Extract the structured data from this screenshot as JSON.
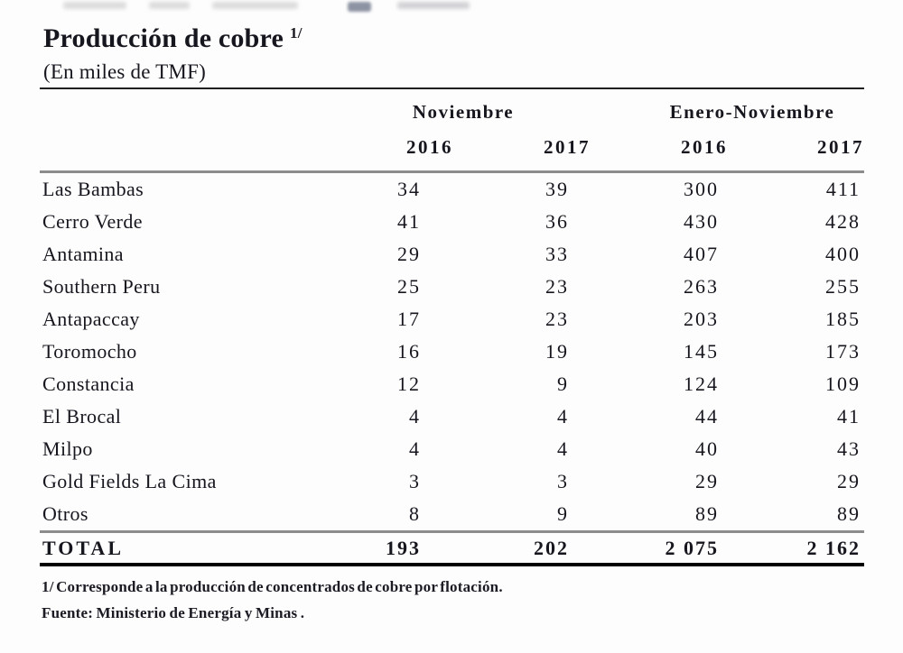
{
  "table": {
    "title": "Producción de cobre",
    "title_superscript": "1/",
    "subtitle": "(En miles de TMF)",
    "col_groups": [
      {
        "label": "Noviembre"
      },
      {
        "label": "Enero-Noviembre"
      }
    ],
    "year_headers": [
      "2016",
      "2017",
      "2016",
      "2017"
    ],
    "rows": [
      {
        "name": "Las Bambas",
        "values": [
          "34",
          "39",
          "300",
          "411"
        ]
      },
      {
        "name": "Cerro Verde",
        "values": [
          "41",
          "36",
          "430",
          "428"
        ]
      },
      {
        "name": "Antamina",
        "values": [
          "29",
          "33",
          "407",
          "400"
        ]
      },
      {
        "name": "Southern Peru",
        "values": [
          "25",
          "23",
          "263",
          "255"
        ]
      },
      {
        "name": "Antapaccay",
        "values": [
          "17",
          "23",
          "203",
          "185"
        ]
      },
      {
        "name": "Toromocho",
        "values": [
          "16",
          "19",
          "145",
          "173"
        ]
      },
      {
        "name": "Constancia",
        "values": [
          "12",
          "9",
          "124",
          "109"
        ]
      },
      {
        "name": "El Brocal",
        "values": [
          "4",
          "4",
          "44",
          "41"
        ]
      },
      {
        "name": "Milpo",
        "values": [
          "4",
          "4",
          "40",
          "43"
        ]
      },
      {
        "name": "Gold Fields La Cima",
        "values": [
          "3",
          "3",
          "29",
          "29"
        ]
      },
      {
        "name": "Otros",
        "values": [
          "8",
          "9",
          "89",
          "89"
        ]
      }
    ],
    "total_row": {
      "name": "TOTAL",
      "values": [
        "193",
        "202",
        "2 075",
        "2 162"
      ]
    },
    "footnote": "1/ Corresponde a la producción de concentrados de cobre por flotación.",
    "source": "Fuente: Ministerio de Energía y Minas ."
  },
  "colors": {
    "text": "#16161e",
    "rule_dark": "#1f1f1f",
    "rule_gray": "#8c8c8c",
    "rule_bottom": "#000000",
    "background": "#fdfdfd"
  },
  "chart_data": {
    "type": "table",
    "title": "Producción de cobre 1/",
    "subtitle": "(En miles de TMF)",
    "column_groups": [
      "Noviembre",
      "Enero-Noviembre"
    ],
    "columns": [
      "Noviembre 2016",
      "Noviembre 2017",
      "Enero-Noviembre 2016",
      "Enero-Noviembre 2017"
    ],
    "categories": [
      "Las Bambas",
      "Cerro Verde",
      "Antamina",
      "Southern Peru",
      "Antapaccay",
      "Toromocho",
      "Constancia",
      "El Brocal",
      "Milpo",
      "Gold Fields La Cima",
      "Otros"
    ],
    "values": [
      [
        34,
        39,
        300,
        411
      ],
      [
        41,
        36,
        430,
        428
      ],
      [
        29,
        33,
        407,
        400
      ],
      [
        25,
        23,
        263,
        255
      ],
      [
        17,
        23,
        203,
        185
      ],
      [
        16,
        19,
        145,
        173
      ],
      [
        12,
        9,
        124,
        109
      ],
      [
        4,
        4,
        44,
        41
      ],
      [
        4,
        4,
        40,
        43
      ],
      [
        3,
        3,
        29,
        29
      ],
      [
        8,
        9,
        89,
        89
      ]
    ],
    "total": [
      193,
      202,
      2075,
      2162
    ],
    "footnote": "1/ Corresponde a la producción de concentrados de cobre por flotación.",
    "source": "Fuente: Ministerio de Energía y Minas ."
  }
}
